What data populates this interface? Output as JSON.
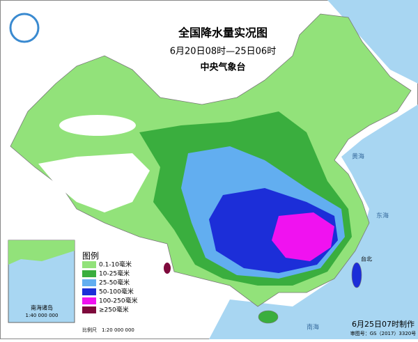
{
  "header": {
    "title": "全国降水量实况图",
    "subtitle": "6月20日08时—25日06时",
    "agency": "中央气象台"
  },
  "legend": {
    "title": "图例",
    "items": [
      {
        "label": "0.1-10毫米",
        "color": "#92e27a"
      },
      {
        "label": "10-25毫米",
        "color": "#3aae3e"
      },
      {
        "label": "25-50毫米",
        "color": "#62aef0"
      },
      {
        "label": "50-100毫米",
        "color": "#1c2ed8"
      },
      {
        "label": "100-250毫米",
        "color": "#f012f0"
      },
      {
        "label": "≥250毫米",
        "color": "#7e0a3c"
      }
    ]
  },
  "inset": {
    "title": "南海诸岛",
    "scale": "1:40 000 000"
  },
  "scale": "比例尺　1:20 000 000",
  "seas": {
    "yellow_sea": "黄海",
    "east_sea": "东海",
    "south_sea": "南海",
    "taipei": "台北"
  },
  "footer": {
    "made": "6月25日07时制作",
    "approval": "审图号：GS（2017）3320号"
  }
}
